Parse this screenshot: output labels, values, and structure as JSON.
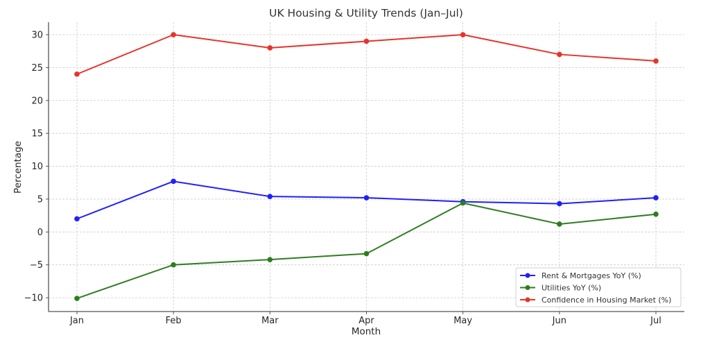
{
  "chart_data": {
    "type": "line",
    "title": "UK Housing & Utility Trends (Jan–Jul)",
    "xlabel": "Month",
    "ylabel": "Percentage",
    "categories": [
      "Jan",
      "Feb",
      "Mar",
      "Apr",
      "May",
      "Jun",
      "Jul"
    ],
    "ylim": [
      -12.1,
      31.9
    ],
    "yticks": [
      -10,
      -5,
      0,
      5,
      10,
      15,
      20,
      25,
      30
    ],
    "ytick_labels": [
      "−10",
      "−5",
      "0",
      "5",
      "10",
      "15",
      "20",
      "25",
      "30"
    ],
    "grid": true,
    "legend_position": "lower-right",
    "series": [
      {
        "name": "Rent & Mortgages YoY (%)",
        "color": "#1f1fff",
        "values": [
          2.0,
          7.7,
          5.4,
          5.2,
          4.6,
          4.3,
          5.2
        ]
      },
      {
        "name": "Utilities YoY (%)",
        "color": "#2e7d20",
        "values": [
          -10.1,
          -5.0,
          -4.2,
          -3.3,
          4.4,
          1.2,
          2.7
        ]
      },
      {
        "name": "Confidence in Housing Market (%)",
        "color": "#e8332a",
        "values": [
          24,
          30,
          28,
          29,
          30,
          27,
          26
        ]
      }
    ]
  }
}
